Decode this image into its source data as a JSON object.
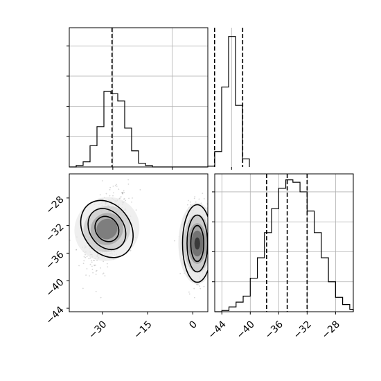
{
  "chart_data": [
    {
      "type": "histogram",
      "panel": "top-left",
      "x_range": [
        -41,
        -6
      ],
      "xticks": [
        -30,
        -15,
        0
      ],
      "bin_edges": [
        -41,
        -39.25,
        -37.5,
        -35.75,
        -34,
        -32.25,
        -30.5,
        -28.75,
        -27,
        -25.25,
        -23.5,
        -21.75,
        -20,
        -18.25,
        -16.5,
        -14.75,
        -13,
        -11.25,
        -9.5,
        -7.75,
        -6,
        -4.25,
        -2.5,
        -0.75,
        1,
        2.75,
        4.5
      ],
      "counts": [
        0,
        2,
        7,
        29,
        55,
        103,
        100,
        90,
        53,
        22,
        5,
        2,
        0,
        0,
        0,
        0,
        0,
        0,
        0,
        0,
        1,
        21,
        109,
        178,
        84,
        11
      ],
      "y_max": 190,
      "grid": true,
      "quantiles": [
        -30.2,
        -4.3,
        2.8
      ]
    },
    {
      "type": "scatter-contour",
      "panel": "bottom-left",
      "x_range": [
        -41,
        5
      ],
      "y_range": [
        -44.5,
        -24.5
      ],
      "xticks": [
        -30,
        -15,
        0
      ],
      "yticks": [
        -28,
        -32,
        -36,
        -40,
        -44
      ],
      "clusters": [
        {
          "center": [
            -28.5,
            -32.5
          ],
          "std": [
            3.5,
            2.3
          ],
          "count": 700,
          "levels": [
            [
              1.3,
              1.2
            ],
            [
              2.2,
              2.2
            ],
            [
              3.2,
              3.2
            ]
          ]
        },
        {
          "center": [
            1.5,
            -34.6
          ],
          "std": [
            2.0,
            2.5
          ],
          "count": 700,
          "levels": [
            [
              1.0,
              1.6
            ],
            [
              2.0,
              2.7
            ],
            [
              3.2,
              3.8
            ]
          ]
        }
      ]
    },
    {
      "type": "histogram",
      "panel": "bottom-right",
      "x_range": [
        -45,
        -25.5
      ],
      "xticks": [
        -44,
        -40,
        -36,
        -32,
        -28
      ],
      "bin_edges": [
        -45,
        -44,
        -43,
        -42,
        -41,
        -40,
        -39,
        -38,
        -37,
        -36,
        -35,
        -34,
        -33,
        -32,
        -31,
        -30,
        -29,
        -28,
        -27,
        -26,
        -25.5
      ],
      "counts": [
        0,
        1,
        4,
        8,
        13,
        28,
        45,
        66,
        86,
        103,
        110,
        108,
        100,
        84,
        66,
        45,
        25,
        12,
        6,
        2
      ],
      "y_max": 115,
      "grid": true,
      "quantiles": [
        -37.7,
        -34.8,
        -32.0
      ]
    }
  ]
}
